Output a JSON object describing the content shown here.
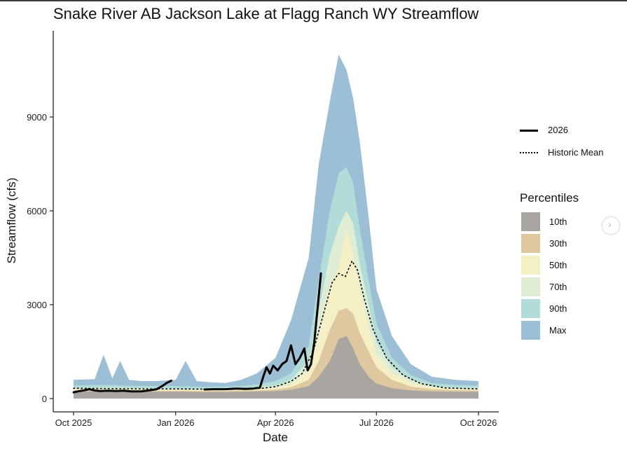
{
  "chart_data": {
    "type": "area",
    "title": "Snake River AB Jackson Lake at Flagg Ranch WY Streamflow",
    "xlabel": "Date",
    "ylabel": "Streamflow (cfs)",
    "x_ticks": [
      "Oct 2025",
      "Jan 2026",
      "Apr 2026",
      "Jul 2026",
      "Oct 2026"
    ],
    "y_ticks": [
      0,
      3000,
      6000,
      9000
    ],
    "xlim": [
      "2025-10-01",
      "2026-10-01"
    ],
    "ylim": [
      -250,
      11500
    ],
    "grid": false,
    "legend_position": "right",
    "lines": [
      {
        "name": "2026",
        "style": "solid",
        "color": "#000000",
        "points": [
          [
            "2025-10-01",
            200
          ],
          [
            "2025-10-05",
            230
          ],
          [
            "2025-10-10",
            260
          ],
          [
            "2025-10-15",
            300
          ],
          [
            "2025-10-20",
            260
          ],
          [
            "2025-10-25",
            240
          ],
          [
            "2025-11-01",
            250
          ],
          [
            "2025-11-08",
            240
          ],
          [
            "2025-11-15",
            250
          ],
          [
            "2025-11-22",
            230
          ],
          [
            "2025-12-01",
            230
          ],
          [
            "2025-12-08",
            260
          ],
          [
            "2025-12-15",
            300
          ],
          [
            "2025-12-20",
            400
          ],
          [
            "2025-12-24",
            500
          ],
          [
            "2025-12-28",
            570
          ],
          null,
          [
            "2026-01-27",
            290
          ],
          [
            "2026-02-05",
            300
          ],
          [
            "2026-02-15",
            300
          ],
          [
            "2026-02-25",
            320
          ],
          [
            "2026-03-05",
            310
          ],
          [
            "2026-03-12",
            320
          ],
          [
            "2026-03-18",
            350
          ],
          [
            "2026-03-21",
            700
          ],
          [
            "2026-03-24",
            1000
          ],
          [
            "2026-03-27",
            800
          ],
          [
            "2026-03-30",
            1050
          ],
          [
            "2026-04-03",
            900
          ],
          [
            "2026-04-07",
            1100
          ],
          [
            "2026-04-11",
            1200
          ],
          [
            "2026-04-15",
            1700
          ],
          [
            "2026-04-19",
            1100
          ],
          [
            "2026-04-23",
            1300
          ],
          [
            "2026-04-27",
            1600
          ],
          [
            "2026-04-30",
            900
          ],
          [
            "2026-05-03",
            1100
          ],
          [
            "2026-05-06",
            1800
          ],
          [
            "2026-05-09",
            2900
          ],
          [
            "2026-05-12",
            4000
          ]
        ]
      },
      {
        "name": "Historic Mean",
        "style": "dotted",
        "color": "#000000",
        "points": [
          [
            "2025-10-01",
            330
          ],
          [
            "2025-11-01",
            320
          ],
          [
            "2025-12-01",
            310
          ],
          [
            "2026-01-01",
            310
          ],
          [
            "2026-02-01",
            300
          ],
          [
            "2026-03-01",
            310
          ],
          [
            "2026-03-20",
            330
          ],
          [
            "2026-04-01",
            380
          ],
          [
            "2026-04-15",
            550
          ],
          [
            "2026-04-25",
            800
          ],
          [
            "2026-05-05",
            1500
          ],
          [
            "2026-05-15",
            2800
          ],
          [
            "2026-05-22",
            3700
          ],
          [
            "2026-05-28",
            4000
          ],
          [
            "2026-06-03",
            3900
          ],
          [
            "2026-06-09",
            4400
          ],
          [
            "2026-06-14",
            4100
          ],
          [
            "2026-06-20",
            3200
          ],
          [
            "2026-06-28",
            2200
          ],
          [
            "2026-07-10",
            1300
          ],
          [
            "2026-07-25",
            750
          ],
          [
            "2026-08-10",
            480
          ],
          [
            "2026-09-01",
            340
          ],
          [
            "2026-10-01",
            310
          ]
        ]
      }
    ],
    "percentile_bands": {
      "title": "Percentiles",
      "dates": [
        "2025-10-01",
        "2025-10-20",
        "2025-10-28",
        "2025-11-05",
        "2025-11-12",
        "2025-11-20",
        "2025-12-01",
        "2025-12-15",
        "2026-01-01",
        "2026-01-10",
        "2026-01-20",
        "2026-02-01",
        "2026-02-15",
        "2026-03-01",
        "2026-03-15",
        "2026-04-01",
        "2026-04-15",
        "2026-05-01",
        "2026-05-10",
        "2026-05-20",
        "2026-05-28",
        "2026-06-04",
        "2026-06-10",
        "2026-06-16",
        "2026-06-24",
        "2026-07-01",
        "2026-07-15",
        "2026-08-01",
        "2026-08-20",
        "2026-09-10",
        "2026-10-01"
      ],
      "series": [
        {
          "name": "10th",
          "color": "#a9a6a2",
          "values": [
            220,
            230,
            230,
            230,
            230,
            230,
            220,
            220,
            220,
            220,
            210,
            210,
            210,
            220,
            230,
            240,
            280,
            400,
            700,
            1200,
            1900,
            2000,
            1600,
            1100,
            700,
            480,
            330,
            260,
            230,
            220,
            220
          ]
        },
        {
          "name": "30th",
          "color": "#dfc7a0",
          "values": [
            260,
            270,
            270,
            270,
            270,
            260,
            250,
            250,
            250,
            250,
            240,
            240,
            240,
            250,
            260,
            290,
            360,
            600,
            1200,
            2200,
            2800,
            2900,
            2700,
            2100,
            1500,
            1000,
            600,
            380,
            300,
            270,
            260
          ]
        },
        {
          "name": "50th",
          "color": "#f5efc5",
          "values": [
            290,
            300,
            300,
            300,
            300,
            290,
            280,
            280,
            280,
            280,
            270,
            270,
            270,
            280,
            300,
            340,
            460,
            900,
            2000,
            3500,
            4200,
            5400,
            4600,
            3500,
            2300,
            1400,
            820,
            500,
            360,
            310,
            300
          ]
        },
        {
          "name": "70th",
          "color": "#dfedd5",
          "values": [
            340,
            350,
            350,
            350,
            350,
            340,
            330,
            330,
            320,
            320,
            310,
            310,
            310,
            330,
            360,
            420,
            600,
            1200,
            2800,
            4600,
            5500,
            6000,
            5600,
            4300,
            3000,
            1800,
            1000,
            600,
            410,
            350,
            340
          ]
        },
        {
          "name": "90th",
          "color": "#b2dcd9",
          "values": [
            420,
            430,
            430,
            430,
            420,
            410,
            400,
            400,
            400,
            390,
            380,
            380,
            380,
            400,
            450,
            550,
            800,
            1700,
            3800,
            6000,
            7200,
            7400,
            6900,
            5400,
            3800,
            2400,
            1300,
            750,
            500,
            430,
            420
          ]
        },
        {
          "name": "Max",
          "color": "#9dbfd6",
          "values": [
            600,
            620,
            1400,
            650,
            1200,
            600,
            560,
            560,
            600,
            1200,
            560,
            520,
            500,
            600,
            800,
            1300,
            2500,
            4500,
            7500,
            9500,
            11000,
            10500,
            9600,
            8200,
            5800,
            3500,
            2000,
            1100,
            700,
            600,
            560
          ]
        }
      ]
    }
  }
}
